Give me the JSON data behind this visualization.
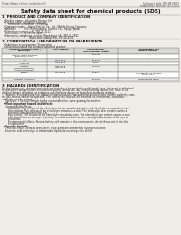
{
  "bg_color": "#f0ede8",
  "header_left": "Product Name: Lithium Ion Battery Cell",
  "header_right_line1": "Substance Code: SRS-HB-00019",
  "header_right_line2": "Established / Revision: Dec.1.2010",
  "title": "Safety data sheet for chemical products (SDS)",
  "section1_title": "1. PRODUCT AND COMPANY IDENTIFICATION",
  "section1_lines": [
    "  • Product name: Lithium Ion Battery Cell",
    "  • Product code: Cylindrical-type cell",
    "        IHF88550, IHF88550L, IHF88550A",
    "  • Company name:    Sanyo Electric Co., Ltd., Mobile Energy Company",
    "  • Address:          2001 Kamionagara, Sumoto City, Hyogo, Japan",
    "  • Telephone number: +81-799-26-4111",
    "  • Fax number: +81-799-26-4129",
    "  • Emergency telephone number (Weekdays) +81-799-26-2842",
    "                                  (Night and holiday) +81-799-26-4101"
  ],
  "section2_title": "2. COMPOSITION / INFORMATION ON INGREDIENTS",
  "section2_lines": [
    "  • Substance or preparation: Preparation",
    "  • Information about the chemical nature of product:"
  ],
  "table_headers": [
    "Common chemical name /\nSynonyms",
    "CAS number",
    "Concentration /\nConcentration range",
    "Classification and\nhazard labeling"
  ],
  "table_rows": [
    [
      "Lithium cobalt peroxide\n(LiMnxCo(1-x)O2)",
      "-",
      "30-60%",
      "-"
    ],
    [
      "Iron",
      "7439-89-6",
      "16-20%",
      "-"
    ],
    [
      "Aluminum",
      "7429-90-5",
      "2-6%",
      "-"
    ],
    [
      "Graphite\n(Natural graphite)\n(Artificial graphite)",
      "7782-42-5\n7782-42-5",
      "10-20%",
      "-"
    ],
    [
      "Copper",
      "7440-50-8",
      "5-15%",
      "Sensitization of the skin\ngroup No.2"
    ],
    [
      "Organic electrolyte",
      "-",
      "10-20%",
      "Inflammable liquid"
    ]
  ],
  "section3_title": "3. HAZARDS IDENTIFICATION",
  "section3_lines": [
    "For the battery cell, chemical materials are stored in a hermetically sealed metal case, designed to withstand",
    "temperatures and pressures encountered during normal use. As a result, during normal use, there is no",
    "physical danger of ignition or explosion and therefore danger of hazardous materials leakage.",
    "    However, if exposed to a fire, added mechanical shocks, decomposed, when electric current suddenly flows,",
    "the gas release cannot be operated. The battery cell case will be breached at the extreme, hazardous",
    "materials may be released.",
    "    Moreover, if heated strongly by the surrounding fire, some gas may be emitted."
  ],
  "section3_sub1": "  • Most important hazard and effects:",
  "section3_sub1_lines": [
    "    Human health effects:",
    "        Inhalation: The release of the electrolyte has an anesthesia action and stimulates a respiratory tract.",
    "        Skin contact: The release of the electrolyte stimulates a skin. The electrolyte skin contact causes a",
    "        sore and stimulation on the skin.",
    "        Eye contact: The release of the electrolyte stimulates eyes. The electrolyte eye contact causes a sore",
    "        and stimulation on the eye. Especially, a substance that causes a strong inflammation of the eye is",
    "        contained.",
    "        Environmental effects: Since a battery cell remains in the environment, do not throw out it into the",
    "        environment."
  ],
  "section3_sub2": "  • Specific hazards:",
  "section3_sub2_lines": [
    "    If the electrolyte contacts with water, it will generate detrimental hydrogen fluoride.",
    "    Since the seal electrolyte is inflammable liquid, do not bring close to fire."
  ]
}
